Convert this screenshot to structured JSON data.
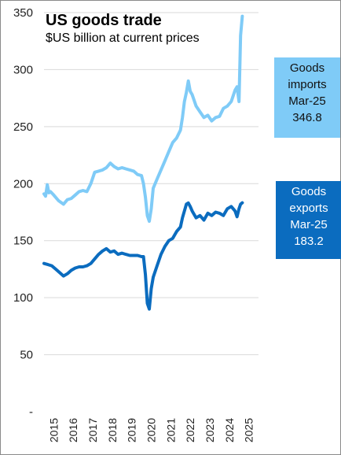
{
  "chart_data": {
    "type": "line",
    "title": "US goods trade",
    "subtitle": "$US billion at current prices",
    "ylim": [
      0,
      350
    ],
    "y_ticks": [
      "-",
      "50",
      "100",
      "150",
      "200",
      "250",
      "300",
      "350"
    ],
    "y_tick_values": [
      0,
      50,
      100,
      150,
      200,
      250,
      300,
      350
    ],
    "x_ticks": [
      "2015",
      "2016",
      "2017",
      "2018",
      "2019",
      "2020",
      "2021",
      "2022",
      "2023",
      "2024",
      "2025"
    ],
    "x_tick_values": [
      2015,
      2016,
      2017,
      2018,
      2019,
      2020,
      2021,
      2022,
      2023,
      2024,
      2025
    ],
    "xlim": [
      2015,
      2025.3
    ],
    "grid": true,
    "series": [
      {
        "name": "Goods imports",
        "color": "#7fcbf7",
        "x": [
          2015.0,
          2015.08,
          2015.17,
          2015.25,
          2015.33,
          2015.5,
          2015.75,
          2016.0,
          2016.2,
          2016.4,
          2016.6,
          2016.8,
          2017.0,
          2017.2,
          2017.4,
          2017.6,
          2017.8,
          2018.0,
          2018.2,
          2018.4,
          2018.6,
          2018.8,
          2019.0,
          2019.2,
          2019.4,
          2019.6,
          2019.8,
          2020.0,
          2020.1,
          2020.2,
          2020.3,
          2020.4,
          2020.5,
          2020.6,
          2020.8,
          2021.0,
          2021.2,
          2021.4,
          2021.6,
          2021.8,
          2022.0,
          2022.1,
          2022.2,
          2022.3,
          2022.4,
          2022.5,
          2022.6,
          2022.8,
          2023.0,
          2023.2,
          2023.4,
          2023.6,
          2023.8,
          2024.0,
          2024.2,
          2024.4,
          2024.6,
          2024.8,
          2024.9,
          2025.0,
          2025.08,
          2025.17
        ],
        "y": [
          191,
          189,
          199,
          192,
          193,
          190,
          185,
          182,
          186,
          187,
          190,
          193,
          194,
          193,
          200,
          210,
          211,
          212,
          214,
          218,
          215,
          213,
          214,
          213,
          212,
          211,
          208,
          207,
          200,
          188,
          172,
          167,
          178,
          196,
          204,
          212,
          220,
          228,
          236,
          240,
          247,
          258,
          272,
          280,
          290,
          281,
          278,
          268,
          263,
          258,
          260,
          255,
          258,
          259,
          266,
          268,
          272,
          282,
          285,
          272,
          330,
          346.8
        ]
      },
      {
        "name": "Goods exports",
        "color": "#0b6cbf",
        "x": [
          2015.0,
          2015.2,
          2015.4,
          2015.6,
          2015.8,
          2016.0,
          2016.2,
          2016.4,
          2016.6,
          2016.8,
          2017.0,
          2017.2,
          2017.4,
          2017.6,
          2017.8,
          2018.0,
          2018.2,
          2018.4,
          2018.6,
          2018.8,
          2019.0,
          2019.2,
          2019.4,
          2019.6,
          2019.8,
          2020.0,
          2020.1,
          2020.2,
          2020.3,
          2020.4,
          2020.5,
          2020.6,
          2020.8,
          2021.0,
          2021.2,
          2021.4,
          2021.6,
          2021.8,
          2022.0,
          2022.1,
          2022.2,
          2022.3,
          2022.4,
          2022.5,
          2022.6,
          2022.8,
          2023.0,
          2023.2,
          2023.4,
          2023.6,
          2023.8,
          2024.0,
          2024.2,
          2024.4,
          2024.6,
          2024.8,
          2024.9,
          2025.0,
          2025.08,
          2025.17
        ],
        "y": [
          130,
          129,
          128,
          125,
          122,
          119,
          121,
          124,
          126,
          127,
          127,
          128,
          130,
          134,
          138,
          141,
          143,
          140,
          141,
          138,
          139,
          138,
          137,
          137,
          137,
          136,
          136,
          120,
          95,
          90,
          108,
          118,
          128,
          138,
          145,
          150,
          152,
          158,
          162,
          170,
          176,
          182,
          183,
          180,
          176,
          170,
          172,
          168,
          174,
          172,
          175,
          174,
          172,
          178,
          180,
          176,
          171,
          178,
          182,
          183.2
        ]
      }
    ],
    "annotations": [
      {
        "lines": [
          "Goods",
          "imports",
          "Mar-25",
          "346.8"
        ]
      },
      {
        "lines": [
          "Goods",
          "exports",
          "Mar-25",
          "183.2"
        ]
      }
    ]
  }
}
